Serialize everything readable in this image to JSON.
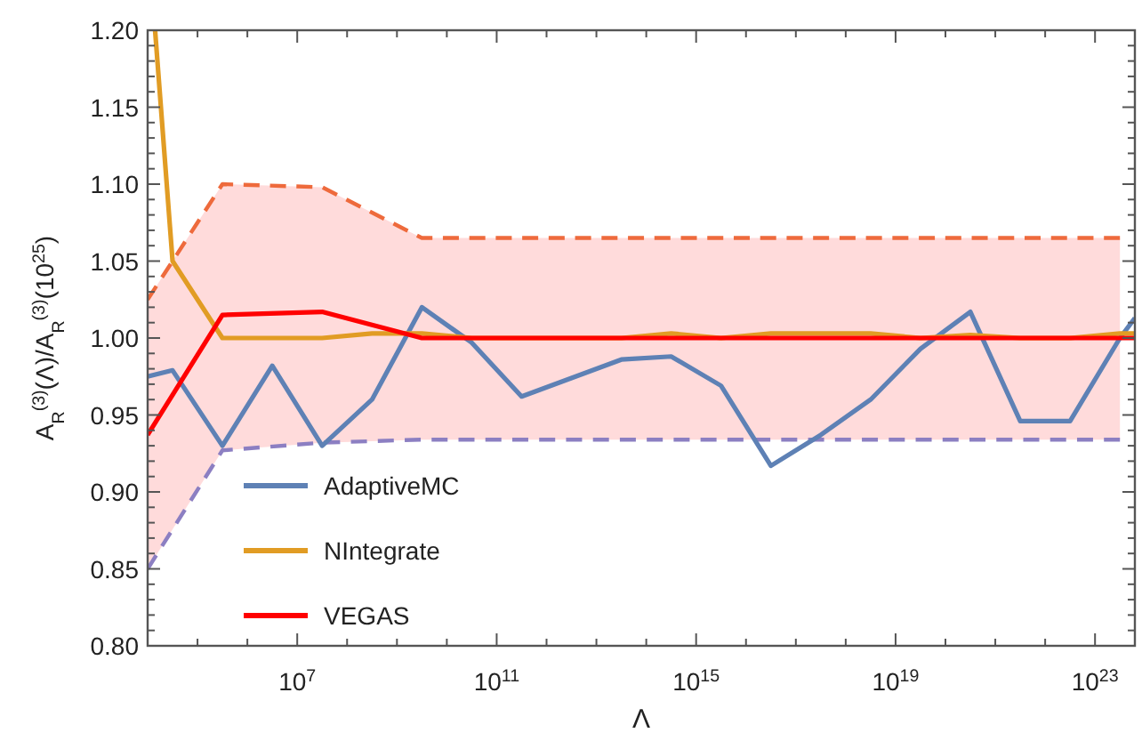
{
  "chart_data": {
    "type": "line",
    "xlabel": "Λ",
    "ylabel": "A$_{R}$$^{(3)}$(Λ)/A$_{R}$$^{(3)}$(10$^{25}$)",
    "log": "x",
    "grid": false,
    "legend": "bottom left",
    "xlim": [
      10000.0,
      6.3e+23
    ],
    "ylim": [
      0.8,
      1.2
    ],
    "xticks": [
      {
        "value": 10000.0,
        "label": null
      },
      {
        "value": 100000.0,
        "label": null
      },
      {
        "value": 1000000.0,
        "label": null
      },
      {
        "value": 10000000.0,
        "label": "10$^{7}$"
      },
      {
        "value": 100000000.0,
        "label": null
      },
      {
        "value": 1000000000.0,
        "label": null
      },
      {
        "value": 10000000000.0,
        "label": null
      },
      {
        "value": 100000000000.0,
        "label": "10$^{11}$"
      },
      {
        "value": 1000000000000.0,
        "label": null
      },
      {
        "value": 10000000000000.0,
        "label": null
      },
      {
        "value": 100000000000000.0,
        "label": null
      },
      {
        "value": 1000000000000000.0,
        "label": "10$^{15}$"
      },
      {
        "value": 1e+16,
        "label": null
      },
      {
        "value": 1e+17,
        "label": null
      },
      {
        "value": 1e+18,
        "label": null
      },
      {
        "value": 1e+19,
        "label": "10$^{19}$"
      },
      {
        "value": 1e+20,
        "label": null
      },
      {
        "value": 1e+21,
        "label": null
      },
      {
        "value": 1e+22,
        "label": null
      },
      {
        "value": 1e+23,
        "label": "10$^{23}$"
      }
    ],
    "yticks": [
      {
        "value": 0.8,
        "label": "0.80"
      },
      {
        "value": 0.81,
        "label": null
      },
      {
        "value": 0.82,
        "label": null
      },
      {
        "value": 0.83,
        "label": null
      },
      {
        "value": 0.84,
        "label": null
      },
      {
        "value": 0.85,
        "label": "0.85"
      },
      {
        "value": 0.86,
        "label": null
      },
      {
        "value": 0.87,
        "label": null
      },
      {
        "value": 0.88,
        "label": null
      },
      {
        "value": 0.89,
        "label": null
      },
      {
        "value": 0.9,
        "label": "0.90"
      },
      {
        "value": 0.91,
        "label": null
      },
      {
        "value": 0.92,
        "label": null
      },
      {
        "value": 0.93,
        "label": null
      },
      {
        "value": 0.94,
        "label": null
      },
      {
        "value": 0.95,
        "label": "0.95"
      },
      {
        "value": 0.96,
        "label": null
      },
      {
        "value": 0.97,
        "label": null
      },
      {
        "value": 0.98,
        "label": null
      },
      {
        "value": 0.99,
        "label": null
      },
      {
        "value": 1.0,
        "label": "1.00"
      },
      {
        "value": 1.01,
        "label": null
      },
      {
        "value": 1.02,
        "label": null
      },
      {
        "value": 1.03,
        "label": null
      },
      {
        "value": 1.04,
        "label": null
      },
      {
        "value": 1.05,
        "label": "1.05"
      },
      {
        "value": 1.06,
        "label": null
      },
      {
        "value": 1.07,
        "label": null
      },
      {
        "value": 1.08,
        "label": null
      },
      {
        "value": 1.09,
        "label": null
      },
      {
        "value": 1.1,
        "label": "1.10"
      },
      {
        "value": 1.11,
        "label": null
      },
      {
        "value": 1.12,
        "label": null
      },
      {
        "value": 1.13,
        "label": null
      },
      {
        "value": 1.14,
        "label": null
      },
      {
        "value": 1.15,
        "label": "1.15"
      },
      {
        "value": 1.16,
        "label": null
      },
      {
        "value": 1.17,
        "label": null
      },
      {
        "value": 1.18,
        "label": null
      },
      {
        "value": 1.19,
        "label": null
      },
      {
        "value": 1.2,
        "label": "1.20"
      }
    ],
    "series": [
      {
        "line_style": "dashed",
        "color": "#ee6a3c",
        "x": [
          10000.0,
          316000.0,
          31600000.0,
          3160000000.0,
          3.16e+23
        ],
        "values": [
          1.025,
          1.1,
          1.098,
          1.065,
          1.065
        ]
      },
      {
        "line_style": "dashed",
        "color": "#8c7fc2",
        "x": [
          10000.0,
          316000.0,
          31600000.0,
          3160000000.0,
          3.16e+23
        ],
        "values": [
          0.85,
          0.927,
          0.932,
          0.934,
          0.934
        ]
      },
      {
        "name": "AdaptiveMC",
        "color": "#5e81b5",
        "line_style": "solid",
        "x": [
          10000.0,
          31600.0,
          316000.0,
          3160000.0,
          31600000.0,
          316000000.0,
          3160000000.0,
          31600000000.0,
          316000000000.0,
          3160000000000.0,
          31600000000000.0,
          316000000000000.0,
          3160000000000000.0,
          3.16e+16,
          3.16e+17,
          3.16e+18,
          3.16e+19,
          3.16e+20,
          3.16e+21,
          3.16e+22,
          3.16e+23,
          6.3e+23
        ],
        "values": [
          0.975,
          0.979,
          0.93,
          0.982,
          0.93,
          0.96,
          1.02,
          0.997,
          0.962,
          0.974,
          0.986,
          0.988,
          0.969,
          0.917,
          0.937,
          0.96,
          0.993,
          1.017,
          0.946,
          0.946,
          1.0,
          1.013
        ]
      },
      {
        "name": "NIntegrate",
        "color": "#e19c24",
        "line_style": "solid",
        "x": [
          14100.0,
          31600.0,
          316000.0,
          3160000.0,
          31600000.0,
          316000000.0,
          3160000000.0,
          31600000000.0,
          316000000000.0,
          3160000000000.0,
          31600000000000.0,
          316000000000000.0,
          3160000000000000.0,
          3.16e+16,
          3.16e+17,
          3.16e+18,
          3.16e+19,
          3.16e+20,
          3.16e+21,
          3.16e+22,
          3.16e+23,
          6.3e+23
        ],
        "values": [
          1.2,
          1.05,
          1.0,
          1.0,
          1.0,
          1.003,
          1.003,
          1.0,
          1.0,
          1.0,
          1.0,
          1.003,
          1.0,
          1.003,
          1.003,
          1.003,
          1.0,
          1.002,
          1.0,
          1.0,
          1.003,
          1.003
        ]
      },
      {
        "name": "VEGAS",
        "color": "#ff0000",
        "line_style": "solid",
        "x": [
          10000.0,
          316000.0,
          31600000.0,
          3160000000.0,
          3.16e+23,
          6.3e+23
        ],
        "values": [
          0.937,
          1.015,
          1.017,
          1.0,
          1.0,
          1.0
        ],
        "lower": [
          0.85,
          0.927,
          0.932,
          0.934,
          0.934,
          null
        ],
        "upper": [
          1.025,
          1.1,
          1.098,
          1.065,
          1.065,
          null
        ]
      }
    ]
  }
}
